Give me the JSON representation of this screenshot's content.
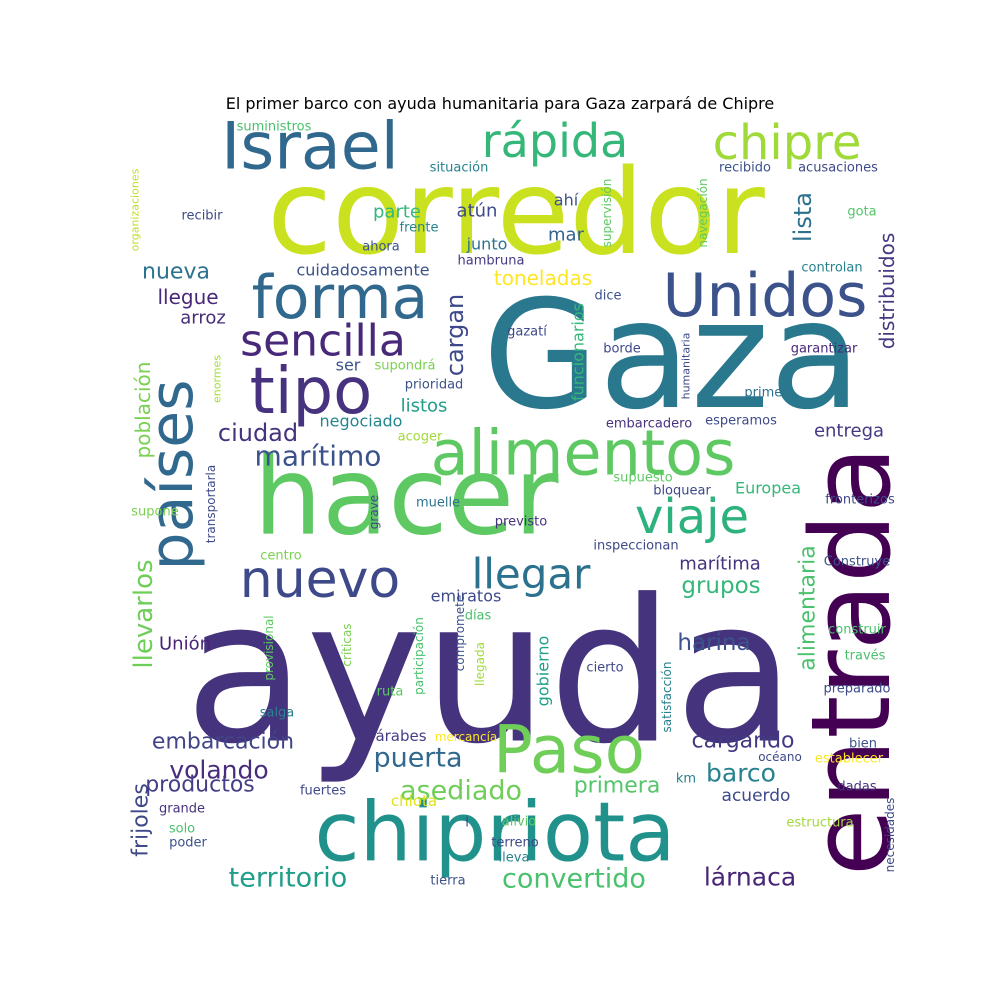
{
  "title": "El primer barco con ayuda humanitaria para Gaza zarpará de Chipre",
  "palette": {
    "dark_purple": "#440154",
    "indigo": "#46327e",
    "blue": "#365c8d",
    "teal": "#277f8e",
    "sea_green": "#1fa187",
    "green": "#4ac16d",
    "lime": "#a0da39",
    "yellow_green": "#cae11f",
    "yellow": "#fde725"
  },
  "words": [
    {
      "text": "ayuda",
      "color": "#46337e"
    },
    {
      "text": "corredor",
      "color": "#cae11f"
    },
    {
      "text": "Gaza",
      "color": "#2a788e"
    },
    {
      "text": "entrada",
      "color": "#440154"
    },
    {
      "text": "hacer",
      "color": "#5ec962"
    },
    {
      "text": "chipriota",
      "color": "#21918c"
    },
    {
      "text": "Paso",
      "color": "#6ece58"
    },
    {
      "text": "Israel",
      "color": "#31688e"
    },
    {
      "text": "alimentos",
      "color": "#5ec962"
    },
    {
      "text": "Unidos",
      "color": "#3b528b"
    },
    {
      "text": "tipo",
      "color": "#46327e"
    },
    {
      "text": "forma",
      "color": "#31688e"
    },
    {
      "text": "países",
      "color": "#31688e"
    },
    {
      "text": "rápida",
      "color": "#35b779"
    },
    {
      "text": "chipre",
      "color": "#a0da39"
    },
    {
      "text": "nuevo",
      "color": "#3e4989"
    },
    {
      "text": "sencilla",
      "color": "#482878"
    },
    {
      "text": "viaje",
      "color": "#2db27d"
    },
    {
      "text": "llegar",
      "color": "#2c728e"
    },
    {
      "text": "marítimo",
      "color": "#3b528b"
    },
    {
      "text": "llevarlos",
      "color": "#6ece58"
    },
    {
      "text": "asediado",
      "color": "#6ece58"
    },
    {
      "text": "territorio",
      "color": "#1f9e89"
    },
    {
      "text": "convertido",
      "color": "#4ac16d"
    },
    {
      "text": "volando",
      "color": "#472d7b"
    },
    {
      "text": "puerta",
      "color": "#31688e"
    },
    {
      "text": "barco",
      "color": "#26828e"
    },
    {
      "text": "lárnaca",
      "color": "#482475"
    },
    {
      "text": "ciudad",
      "color": "#46337e"
    },
    {
      "text": "cargan",
      "color": "#3e4989"
    },
    {
      "text": "embarcación",
      "color": "#414487"
    },
    {
      "text": "alimentaria",
      "color": "#4ac16d"
    },
    {
      "text": "nueva",
      "color": "#2c728e"
    },
    {
      "text": "harina",
      "color": "#3b528b"
    },
    {
      "text": "grupos",
      "color": "#35b779"
    },
    {
      "text": "cargando",
      "color": "#443983"
    },
    {
      "text": "productos",
      "color": "#433e85"
    },
    {
      "text": "primera",
      "color": "#54c568"
    },
    {
      "text": "lista",
      "color": "#2c728e"
    },
    {
      "text": "frijoles",
      "color": "#3e4989"
    },
    {
      "text": "población",
      "color": "#7ad151"
    },
    {
      "text": "distribuidos",
      "color": "#443a83"
    },
    {
      "text": "llegue",
      "color": "#482878"
    },
    {
      "text": "parte",
      "color": "#35b779"
    },
    {
      "text": "atún",
      "color": "#3e4989"
    },
    {
      "text": "mar",
      "color": "#33638d"
    },
    {
      "text": "toneladas",
      "color": "#fde725"
    },
    {
      "text": "ahí",
      "color": "#3b528b"
    },
    {
      "text": "arroz",
      "color": "#472c7a"
    },
    {
      "text": "listos",
      "color": "#1f9e89"
    },
    {
      "text": "negociado",
      "color": "#24868e"
    },
    {
      "text": "ser",
      "color": "#3b528b"
    },
    {
      "text": "cuidadosamente",
      "color": "#3b528b"
    },
    {
      "text": "junto",
      "color": "#2c728e"
    },
    {
      "text": "entrega",
      "color": "#443983"
    },
    {
      "text": "marítima",
      "color": "#46337e"
    },
    {
      "text": "acuerdo",
      "color": "#3e4989"
    },
    {
      "text": "Europea",
      "color": "#35b779"
    },
    {
      "text": "Unión",
      "color": "#482475"
    },
    {
      "text": "emiratos",
      "color": "#3e4989"
    },
    {
      "text": "funcionarios",
      "color": "#35b779"
    },
    {
      "text": "gobierno",
      "color": "#1fa088"
    },
    {
      "text": "chiota",
      "color": "#dfe318"
    },
    {
      "text": "árabes",
      "color": "#433e85"
    },
    {
      "text": "suministros",
      "color": "#4ac16d"
    },
    {
      "text": "organizaciones",
      "color": "#bddf26"
    },
    {
      "text": "situación",
      "color": "#26828e"
    },
    {
      "text": "recibir",
      "color": "#3e4989"
    },
    {
      "text": "frente",
      "color": "#26828e"
    },
    {
      "text": "ahora",
      "color": "#3b528b"
    },
    {
      "text": "hambruna",
      "color": "#443983"
    },
    {
      "text": "supervisión",
      "color": "#5ec962"
    },
    {
      "text": "recibido",
      "color": "#3b528b"
    },
    {
      "text": "acusaciones",
      "color": "#3e4989"
    },
    {
      "text": "navegación",
      "color": "#5ec962"
    },
    {
      "text": "gota",
      "color": "#54c568"
    },
    {
      "text": "controlan",
      "color": "#26828e"
    },
    {
      "text": "dice",
      "color": "#3b528b"
    },
    {
      "text": "gazatí",
      "color": "#3e4989"
    },
    {
      "text": "borde",
      "color": "#3e4989"
    },
    {
      "text": "humanitaria",
      "color": "#3e4989"
    },
    {
      "text": "garantizar",
      "color": "#482878"
    },
    {
      "text": "primer",
      "color": "#2c728e"
    },
    {
      "text": "esperamos",
      "color": "#3e4989"
    },
    {
      "text": "embarcadero",
      "color": "#46327e"
    },
    {
      "text": "supondrá",
      "color": "#7ad151"
    },
    {
      "text": "prioridad",
      "color": "#3b528b"
    },
    {
      "text": "enormes",
      "color": "#a5db36"
    },
    {
      "text": "acoger",
      "color": "#a0da39"
    },
    {
      "text": "transportarla",
      "color": "#3e4989"
    },
    {
      "text": "supone",
      "color": "#7ad151"
    },
    {
      "text": "grave",
      "color": "#3e4989"
    },
    {
      "text": "muelle",
      "color": "#2c728e"
    },
    {
      "text": "previsto",
      "color": "#46337e"
    },
    {
      "text": "supuesto",
      "color": "#5ec962"
    },
    {
      "text": "bloquear",
      "color": "#3e4989"
    },
    {
      "text": "fronterizos",
      "color": "#3e4989"
    },
    {
      "text": "inspeccionan",
      "color": "#3e4989"
    },
    {
      "text": "Construye",
      "color": "#3b528b"
    },
    {
      "text": "centro",
      "color": "#7ad151"
    },
    {
      "text": "provisional",
      "color": "#5ec962"
    },
    {
      "text": "críticas",
      "color": "#7ad151"
    },
    {
      "text": "participación",
      "color": "#4ac16d"
    },
    {
      "text": "compromete",
      "color": "#3b528b"
    },
    {
      "text": "días",
      "color": "#4ac16d"
    },
    {
      "text": "llegada",
      "color": "#a0da39"
    },
    {
      "text": "cierto",
      "color": "#3e4989"
    },
    {
      "text": "satisfacción",
      "color": "#26828e"
    },
    {
      "text": "construir",
      "color": "#4ac16d"
    },
    {
      "text": "través",
      "color": "#4ac16d"
    },
    {
      "text": "preparado",
      "color": "#3e4989"
    },
    {
      "text": "salga",
      "color": "#26828e"
    },
    {
      "text": "ruta",
      "color": "#5ec962"
    },
    {
      "text": "mercancía",
      "color": "#fde725"
    },
    {
      "text": "bien",
      "color": "#3b528b"
    },
    {
      "text": "océano",
      "color": "#3e4989"
    },
    {
      "text": "establecer",
      "color": "#fde725"
    },
    {
      "text": "km",
      "color": "#26828e"
    },
    {
      "text": "dadas",
      "color": "#46327e"
    },
    {
      "text": "fuertes",
      "color": "#3e4989"
    },
    {
      "text": "grande",
      "color": "#46337e"
    },
    {
      "text": "solo",
      "color": "#4ac16d"
    },
    {
      "text": "poder",
      "color": "#3b528b"
    },
    {
      "text": "alivio",
      "color": "#5ec962"
    },
    {
      "text": "terreno",
      "color": "#3e4989"
    },
    {
      "text": "lleva",
      "color": "#26828e"
    },
    {
      "text": "tierra",
      "color": "#3b528b"
    },
    {
      "text": "estructura",
      "color": "#a0da39"
    },
    {
      "text": "necesidades",
      "color": "#3e4989"
    },
    {
      "text": "l",
      "color": "#3e4989"
    }
  ]
}
